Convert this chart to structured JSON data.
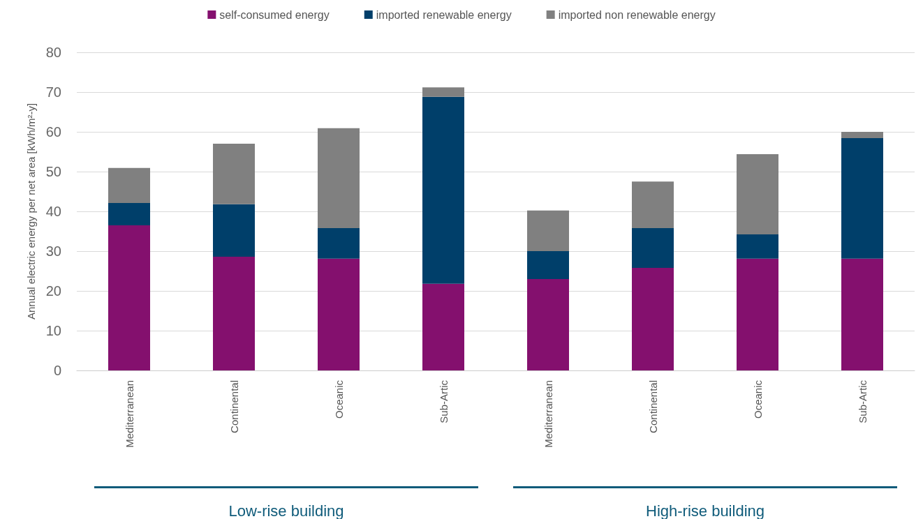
{
  "chart_data": {
    "type": "bar",
    "stacked": true,
    "ylabel": "Annual electric energy per net area [kWh/m²-y]",
    "categories": [
      "Mediterranean",
      "Continental",
      "Oceanic",
      "Sub-Artic",
      "Mediterranean",
      "Continental",
      "Oceanic",
      "Sub-Artic"
    ],
    "series": [
      {
        "name": "self-consumed energy",
        "color": "#84106e",
        "values": [
          36.5,
          28.6,
          28.1,
          21.8,
          23.0,
          25.8,
          28.1,
          28.1
        ]
      },
      {
        "name": "imported renewable energy",
        "color": "#003f6a",
        "values": [
          5.6,
          13.2,
          7.7,
          47.0,
          7.0,
          10.0,
          6.1,
          30.3
        ]
      },
      {
        "name": "imported non renewable energy",
        "color": "#808080",
        "values": [
          8.8,
          15.2,
          25.1,
          2.4,
          10.2,
          11.7,
          20.2,
          1.6
        ]
      }
    ],
    "ylim": [
      0,
      80
    ],
    "yticks": [
      0,
      10,
      20,
      30,
      40,
      50,
      60,
      70,
      80
    ],
    "grid": "y",
    "legend": "top",
    "annotations": [
      "Low-rise building",
      "High-rise building"
    ]
  }
}
